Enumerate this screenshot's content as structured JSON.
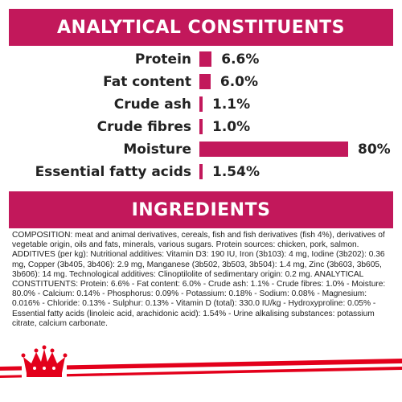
{
  "analytical": {
    "title": "ANALYTICAL CONSTITUENTS",
    "bar_color": "#c2185b",
    "rows": [
      {
        "label": "Protein",
        "value_text": "6.6%",
        "percent": 6.6
      },
      {
        "label": "Fat content",
        "value_text": "6.0%",
        "percent": 6.0
      },
      {
        "label": "Crude ash",
        "value_text": "1.1%",
        "percent": 1.1
      },
      {
        "label": "Crude fibres",
        "value_text": "1.0%",
        "percent": 1.0
      },
      {
        "label": "Moisture",
        "value_text": "80%",
        "percent": 80
      },
      {
        "label": "Essential fatty acids",
        "value_text": "1.54%",
        "percent": 1.54
      }
    ]
  },
  "ingredients": {
    "title": "INGREDIENTS",
    "text": "COMPOSITION: meat and animal derivatives, cereals, fish and fish derivatives (fish 4%), derivatives of vegetable origin, oils and fats, minerals, various sugars. Protein sources: chicken, pork, salmon. ADDITIVES (per kg): Nutritional additives: Vitamin D3: 190 IU, Iron (3b103): 4 mg, Iodine (3b202): 0.36 mg, Copper (3b405, 3b406): 2.9 mg, Manganese (3b502, 3b503, 3b504): 1.4 mg, Zinc (3b603, 3b605, 3b606): 14 mg. Technological additives: Clinoptilolite of sedimentary origin: 0.2 mg. ANALYTICAL CONSTITUENTS: Protein: 6.6% - Fat content: 6.0% - Crude ash: 1.1% - Crude fibres: 1.0% - Moisture: 80.0% - Calcium: 0.14% - Phosphorus: 0.09% - Potassium: 0.18% - Sodium: 0.08% - Magnesium: 0.016% - Chloride: 0.13% - Sulphur: 0.13% - Vitamin D (total): 330.0 IU/kg - Hydroxyproline: 0.05% - Essential fatty acids (linoleic acid, arachidonic acid): 1.54% - Urine alkalising substances: potassium citrate, calcium carbonate."
  },
  "footer": {
    "logo_icon": "crown-icon",
    "accent_color": "#e3001b"
  }
}
